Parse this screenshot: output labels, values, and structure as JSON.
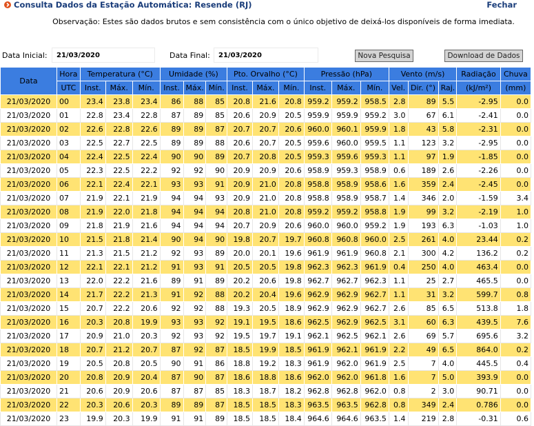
{
  "header": {
    "title": "Consulta Dados da Estação Automática: Resende (RJ)",
    "close_label": "Fechar",
    "note": "Observação: Estes são dados brutos e sem consistência com o único objetivo de deixá-los disponíveis de forma imediata."
  },
  "filters": {
    "start_label": "Data Inicial:",
    "start_value": "21/03/2020",
    "end_label": "Data Final:",
    "end_value": "21/03/2020",
    "new_search_label": "Nova Pesquisa",
    "download_label": "Download de Dados"
  },
  "table": {
    "colors": {
      "header": "#3b7de0",
      "row_highlight": "#ffe373",
      "row_plain": "#ffffff"
    },
    "groups": [
      "Data",
      "Hora",
      "Temperatura (°C)",
      "Umidade (%)",
      "Pto. Orvalho (°C)",
      "Pressão (hPa)",
      "Vento (m/s)",
      "Radiação",
      "Chuva"
    ],
    "subheaders": [
      "UTC",
      "Inst.",
      "Máx.",
      "Mín.",
      "Inst.",
      "Máx.",
      "Mín.",
      "Inst.",
      "Máx.",
      "Mín.",
      "Inst.",
      "Máx.",
      "Mín.",
      "Vel.",
      "Dir. (°)",
      "Raj.",
      "(kJ/m²)",
      "(mm)"
    ],
    "rows": [
      [
        "21/03/2020",
        "00",
        "23.4",
        "23.8",
        "23.4",
        "86",
        "88",
        "85",
        "20.8",
        "21.6",
        "20.8",
        "959.2",
        "959.2",
        "958.5",
        "2.8",
        "89",
        "5.5",
        "-2.95",
        "0.0"
      ],
      [
        "21/03/2020",
        "01",
        "22.8",
        "23.4",
        "22.8",
        "87",
        "89",
        "85",
        "20.6",
        "20.9",
        "20.5",
        "959.9",
        "959.9",
        "959.2",
        "3.0",
        "67",
        "6.1",
        "-2.41",
        "0.0"
      ],
      [
        "21/03/2020",
        "02",
        "22.6",
        "22.8",
        "22.6",
        "89",
        "89",
        "87",
        "20.7",
        "20.7",
        "20.6",
        "960.0",
        "960.1",
        "959.9",
        "1.8",
        "43",
        "5.8",
        "-2.31",
        "0.0"
      ],
      [
        "21/03/2020",
        "03",
        "22.5",
        "22.7",
        "22.5",
        "89",
        "89",
        "88",
        "20.6",
        "20.7",
        "20.5",
        "959.6",
        "960.0",
        "959.5",
        "1.1",
        "123",
        "3.2",
        "-2.95",
        "0.0"
      ],
      [
        "21/03/2020",
        "04",
        "22.4",
        "22.5",
        "22.4",
        "90",
        "90",
        "89",
        "20.7",
        "20.8",
        "20.5",
        "959.3",
        "959.6",
        "959.3",
        "1.1",
        "97",
        "1.9",
        "-1.85",
        "0.0"
      ],
      [
        "21/03/2020",
        "05",
        "22.3",
        "22.5",
        "22.2",
        "92",
        "92",
        "90",
        "20.9",
        "20.9",
        "20.6",
        "958.9",
        "959.3",
        "958.9",
        "0.6",
        "189",
        "2.6",
        "-2.26",
        "0.0"
      ],
      [
        "21/03/2020",
        "06",
        "22.1",
        "22.4",
        "22.1",
        "93",
        "93",
        "91",
        "20.9",
        "21.0",
        "20.8",
        "958.8",
        "958.9",
        "958.6",
        "1.6",
        "359",
        "2.4",
        "-2.45",
        "0.0"
      ],
      [
        "21/03/2020",
        "07",
        "21.9",
        "22.1",
        "21.9",
        "94",
        "94",
        "93",
        "20.9",
        "21.0",
        "20.8",
        "958.8",
        "958.9",
        "958.7",
        "1.4",
        "346",
        "2.0",
        "-1.59",
        "3.4"
      ],
      [
        "21/03/2020",
        "08",
        "21.9",
        "22.0",
        "21.8",
        "94",
        "94",
        "94",
        "20.8",
        "21.0",
        "20.8",
        "959.2",
        "959.2",
        "958.8",
        "1.9",
        "99",
        "3.2",
        "-2.19",
        "1.0"
      ],
      [
        "21/03/2020",
        "09",
        "21.8",
        "21.9",
        "21.6",
        "94",
        "94",
        "94",
        "20.7",
        "20.9",
        "20.6",
        "960.0",
        "960.0",
        "959.2",
        "1.9",
        "193",
        "6.3",
        "-1.03",
        "1.0"
      ],
      [
        "21/03/2020",
        "10",
        "21.5",
        "21.8",
        "21.4",
        "90",
        "94",
        "90",
        "19.8",
        "20.7",
        "19.7",
        "960.8",
        "960.8",
        "960.0",
        "2.5",
        "261",
        "4.0",
        "23.44",
        "0.2"
      ],
      [
        "21/03/2020",
        "11",
        "21.3",
        "21.5",
        "21.2",
        "92",
        "93",
        "89",
        "20.0",
        "20.1",
        "19.6",
        "961.9",
        "961.9",
        "960.8",
        "2.1",
        "300",
        "4.2",
        "136.2",
        "0.2"
      ],
      [
        "21/03/2020",
        "12",
        "22.1",
        "22.1",
        "21.2",
        "91",
        "93",
        "91",
        "20.5",
        "20.5",
        "19.8",
        "962.3",
        "962.3",
        "961.9",
        "0.4",
        "250",
        "4.0",
        "463.4",
        "0.0"
      ],
      [
        "21/03/2020",
        "13",
        "22.0",
        "22.2",
        "21.6",
        "89",
        "91",
        "89",
        "20.2",
        "20.6",
        "19.8",
        "962.7",
        "962.7",
        "962.3",
        "1.1",
        "25",
        "2.7",
        "465.5",
        "0.0"
      ],
      [
        "21/03/2020",
        "14",
        "21.7",
        "22.2",
        "21.3",
        "91",
        "92",
        "88",
        "20.2",
        "20.4",
        "19.6",
        "962.9",
        "962.9",
        "962.7",
        "1.1",
        "31",
        "3.2",
        "599.7",
        "0.8"
      ],
      [
        "21/03/2020",
        "15",
        "20.7",
        "22.2",
        "20.6",
        "92",
        "92",
        "88",
        "19.3",
        "20.5",
        "18.9",
        "962.9",
        "962.9",
        "962.7",
        "2.6",
        "85",
        "6.5",
        "513.8",
        "1.8"
      ],
      [
        "21/03/2020",
        "16",
        "20.3",
        "20.8",
        "19.9",
        "93",
        "93",
        "92",
        "19.1",
        "19.5",
        "18.6",
        "962.5",
        "962.9",
        "962.5",
        "3.1",
        "60",
        "6.3",
        "439.5",
        "7.6"
      ],
      [
        "21/03/2020",
        "17",
        "20.9",
        "21.0",
        "20.3",
        "92",
        "93",
        "92",
        "19.5",
        "19.7",
        "19.1",
        "962.1",
        "962.5",
        "962.1",
        "2.6",
        "69",
        "5.7",
        "695.6",
        "3.2"
      ],
      [
        "21/03/2020",
        "18",
        "20.7",
        "21.2",
        "20.7",
        "87",
        "92",
        "87",
        "18.5",
        "19.9",
        "18.5",
        "961.9",
        "962.1",
        "961.9",
        "2.2",
        "49",
        "6.5",
        "864.0",
        "0.2"
      ],
      [
        "21/03/2020",
        "19",
        "20.5",
        "20.8",
        "20.5",
        "90",
        "91",
        "86",
        "18.8",
        "19.2",
        "18.3",
        "961.9",
        "962.0",
        "961.9",
        "2.5",
        "7",
        "4.0",
        "445.5",
        "0.4"
      ],
      [
        "21/03/2020",
        "20",
        "20.8",
        "20.9",
        "20.4",
        "87",
        "90",
        "87",
        "18.6",
        "18.8",
        "18.6",
        "962.0",
        "962.0",
        "961.8",
        "1.6",
        "7",
        "5.0",
        "393.9",
        "0.0"
      ],
      [
        "21/03/2020",
        "21",
        "20.6",
        "20.9",
        "20.6",
        "87",
        "87",
        "85",
        "18.3",
        "18.7",
        "18.2",
        "962.8",
        "962.8",
        "962.0",
        "0.8",
        "2",
        "3.0",
        "90.71",
        "0.0"
      ],
      [
        "21/03/2020",
        "22",
        "20.3",
        "20.6",
        "20.3",
        "89",
        "89",
        "87",
        "18.5",
        "18.5",
        "18.3",
        "963.5",
        "963.5",
        "962.8",
        "0.8",
        "349",
        "2.4",
        "0.786",
        "0.0"
      ],
      [
        "21/03/2020",
        "23",
        "19.9",
        "20.3",
        "19.9",
        "91",
        "91",
        "89",
        "18.5",
        "18.5",
        "18.4",
        "964.6",
        "964.6",
        "963.5",
        "1.4",
        "219",
        "2.8",
        "-0.31",
        "0.6"
      ]
    ]
  }
}
